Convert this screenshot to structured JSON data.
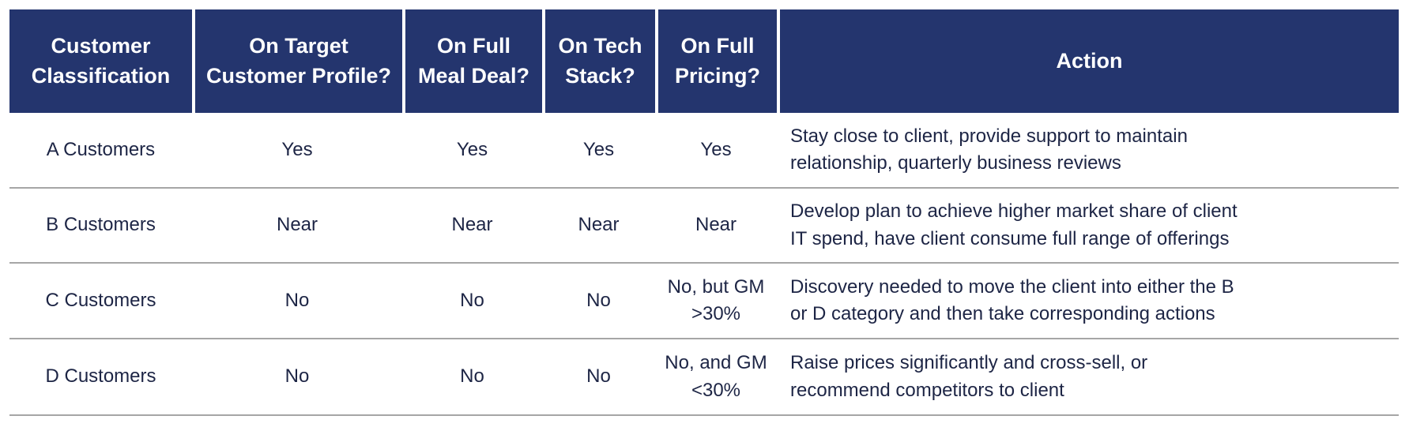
{
  "table": {
    "columns": [
      "Customer\nClassification",
      "On Target\nCustomer Profile?",
      "On Full\nMeal Deal?",
      "On Tech\nStack?",
      "On Full\nPricing?",
      "Action"
    ],
    "rows": [
      {
        "cells": [
          "A Customers",
          "Yes",
          "Yes",
          "Yes",
          "Yes",
          "Stay close to client, provide support to maintain\nrelationship, quarterly business reviews"
        ]
      },
      {
        "cells": [
          "B Customers",
          "Near",
          "Near",
          "Near",
          "Near",
          "Develop plan to achieve higher market share of client\nIT spend, have client consume full range of offerings"
        ]
      },
      {
        "cells": [
          "C Customers",
          "No",
          "No",
          "No",
          "No, but GM\n>30%",
          "Discovery needed to move the client into either the B\nor D category and then take corresponding actions"
        ]
      },
      {
        "cells": [
          "D Customers",
          "No",
          "No",
          "No",
          "No, and GM\n<30%",
          "Raise prices significantly and cross-sell, or\nrecommend competitors to client"
        ]
      }
    ],
    "theme": {
      "header_bg": "#24356E",
      "header_text": "#FFFFFF",
      "body_text": "#1D2545",
      "divider": "#A6A6A6"
    }
  }
}
